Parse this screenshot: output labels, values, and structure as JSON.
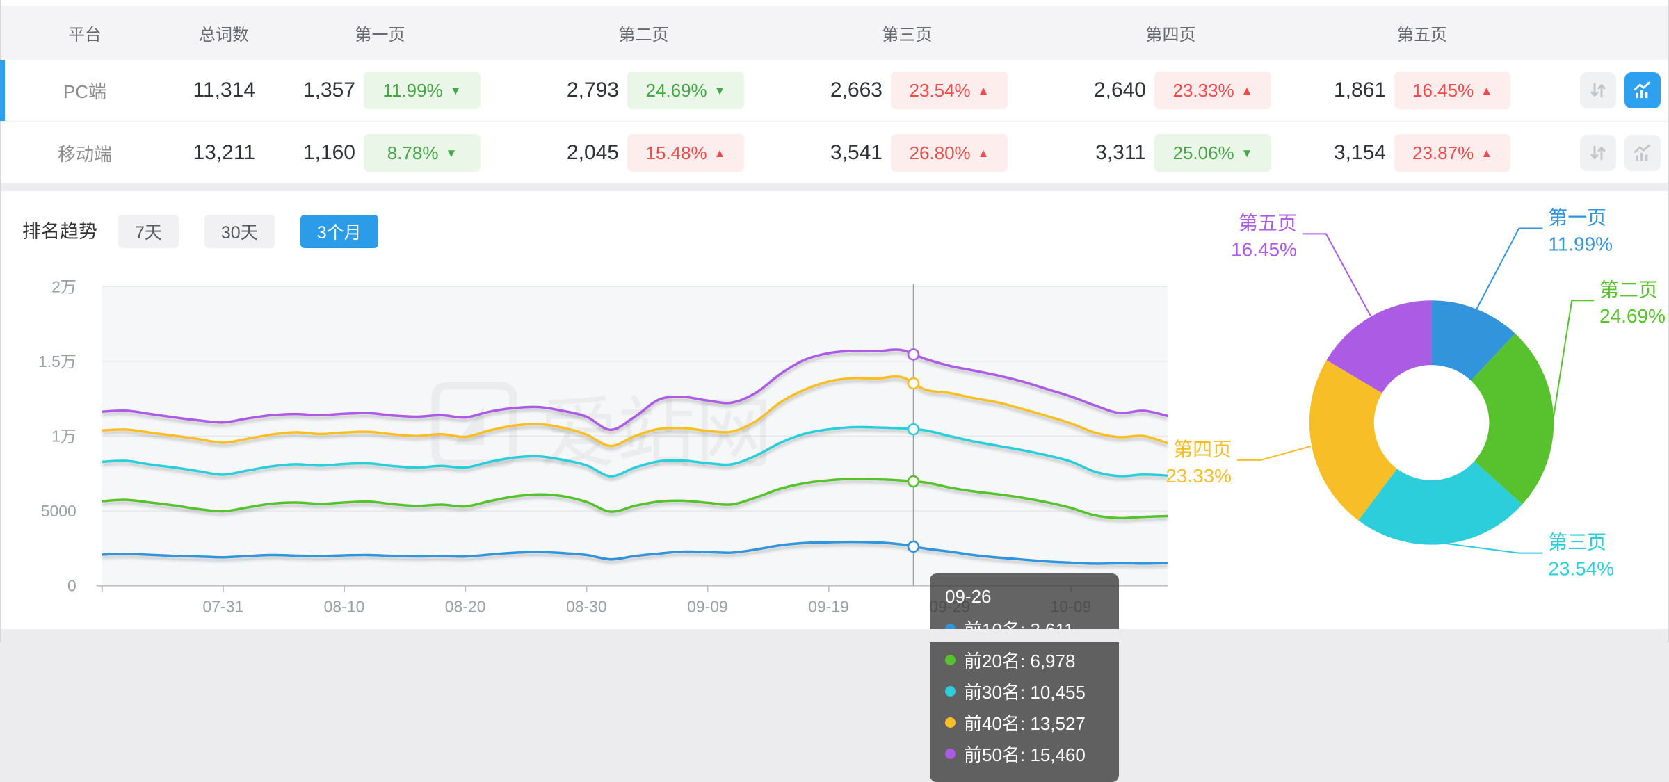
{
  "table": {
    "headers": [
      "平台",
      "总词数",
      "第一页",
      "第二页",
      "第三页",
      "第四页",
      "第五页"
    ],
    "rows": [
      {
        "platform": "PC端",
        "total": "11,314",
        "active": true,
        "pages": [
          {
            "count": "1,357",
            "pct": "11.99%",
            "dir": "down",
            "color": "green"
          },
          {
            "count": "2,793",
            "pct": "24.69%",
            "dir": "down",
            "color": "green"
          },
          {
            "count": "2,663",
            "pct": "23.54%",
            "dir": "up",
            "color": "red"
          },
          {
            "count": "2,640",
            "pct": "23.33%",
            "dir": "up",
            "color": "red"
          },
          {
            "count": "1,861",
            "pct": "16.45%",
            "dir": "up",
            "color": "red"
          }
        ]
      },
      {
        "platform": "移动端",
        "total": "13,211",
        "active": false,
        "pages": [
          {
            "count": "1,160",
            "pct": "8.78%",
            "dir": "down",
            "color": "green"
          },
          {
            "count": "2,045",
            "pct": "15.48%",
            "dir": "up",
            "color": "red"
          },
          {
            "count": "3,541",
            "pct": "26.80%",
            "dir": "up",
            "color": "red"
          },
          {
            "count": "3,311",
            "pct": "25.06%",
            "dir": "down",
            "color": "green"
          },
          {
            "count": "3,154",
            "pct": "23.87%",
            "dir": "up",
            "color": "red"
          }
        ]
      }
    ]
  },
  "trend": {
    "title": "排名趋势",
    "ranges": [
      {
        "label": "7天",
        "active": false
      },
      {
        "label": "30天",
        "active": false
      },
      {
        "label": "3个月",
        "active": true
      }
    ]
  },
  "watermark": {
    "text": "爱站网"
  },
  "colors": {
    "accent_blue": "#2B9FF0",
    "badge_green": "#46A546",
    "badge_red": "#F24A4A",
    "series": [
      "#3295DB",
      "#57C22D",
      "#2BCEDA",
      "#F7BE27",
      "#AC5CE4"
    ]
  },
  "chart_data": [
    {
      "type": "line",
      "title": "排名趋势（3个月）",
      "x": [
        "07-21",
        "07-23",
        "07-25",
        "07-27",
        "07-29",
        "07-31",
        "08-02",
        "08-04",
        "08-06",
        "08-08",
        "08-10",
        "08-12",
        "08-14",
        "08-16",
        "08-18",
        "08-20",
        "08-22",
        "08-24",
        "08-26",
        "08-28",
        "08-30",
        "09-01",
        "09-03",
        "09-05",
        "09-07",
        "09-09",
        "09-11",
        "09-13",
        "09-15",
        "09-17",
        "09-19",
        "09-21",
        "09-23",
        "09-25",
        "09-27",
        "09-29",
        "10-01",
        "10-03",
        "10-05",
        "10-07",
        "10-09",
        "10-11",
        "10-13",
        "10-15",
        "10-17"
      ],
      "x_tick_labels": [
        "07-31",
        "08-10",
        "08-20",
        "08-30",
        "09-09",
        "09-19",
        "09-29",
        "10-09"
      ],
      "ylim": [
        0,
        20000
      ],
      "y_tick_labels": [
        "0",
        "5000",
        "1万",
        "1.5万",
        "2万"
      ],
      "grid": true,
      "legend_position": "none",
      "series": [
        {
          "name": "前10名",
          "color": "#3295DB",
          "values": [
            2080,
            2130,
            2060,
            1990,
            1950,
            1900,
            1980,
            2050,
            2010,
            1970,
            2030,
            2050,
            1990,
            1960,
            1980,
            1950,
            2080,
            2200,
            2250,
            2180,
            2050,
            1760,
            1980,
            2150,
            2280,
            2250,
            2210,
            2420,
            2700,
            2850,
            2900,
            2930,
            2890,
            2760,
            2480,
            2280,
            2040,
            1880,
            1750,
            1620,
            1540,
            1470,
            1500,
            1480,
            1510
          ]
        },
        {
          "name": "前20名",
          "color": "#57C22D",
          "values": [
            5650,
            5740,
            5560,
            5360,
            5120,
            4980,
            5230,
            5480,
            5560,
            5470,
            5560,
            5620,
            5450,
            5330,
            5420,
            5300,
            5650,
            5960,
            6100,
            5990,
            5600,
            4950,
            5340,
            5630,
            5680,
            5540,
            5430,
            5900,
            6480,
            6850,
            7050,
            7150,
            7120,
            7040,
            6900,
            6560,
            6300,
            6110,
            5880,
            5580,
            5200,
            4700,
            4520,
            4600,
            4650
          ]
        },
        {
          "name": "前30名",
          "color": "#2BCEDA",
          "values": [
            8280,
            8350,
            8100,
            7900,
            7650,
            7420,
            7700,
            7980,
            8120,
            8030,
            8140,
            8180,
            8000,
            7900,
            8010,
            7900,
            8280,
            8560,
            8650,
            8420,
            8050,
            7320,
            7900,
            8320,
            8360,
            8190,
            8120,
            8700,
            9550,
            10150,
            10450,
            10600,
            10580,
            10520,
            10380,
            10000,
            9640,
            9350,
            9060,
            8720,
            8300,
            7620,
            7330,
            7430,
            7360
          ]
        },
        {
          "name": "前40名",
          "color": "#F7BE27",
          "values": [
            10380,
            10440,
            10230,
            10020,
            9800,
            9560,
            9820,
            10100,
            10260,
            10140,
            10240,
            10290,
            10120,
            10010,
            10130,
            9950,
            10380,
            10700,
            10800,
            10570,
            10100,
            9340,
            10000,
            10480,
            10540,
            10350,
            10300,
            11000,
            12250,
            13100,
            13650,
            13880,
            13850,
            13950,
            13100,
            12880,
            12540,
            12250,
            11820,
            11350,
            10850,
            10230,
            9930,
            10010,
            9520
          ]
        },
        {
          "name": "前50名",
          "color": "#AC5CE4",
          "values": [
            11640,
            11700,
            11480,
            11250,
            11050,
            10920,
            11180,
            11400,
            11480,
            11400,
            11500,
            11540,
            11380,
            11300,
            11400,
            11250,
            11640,
            11880,
            11950,
            11700,
            11300,
            10420,
            11300,
            12450,
            12620,
            12380,
            12240,
            12900,
            14150,
            15100,
            15550,
            15700,
            15680,
            15760,
            15160,
            14700,
            14380,
            14050,
            13650,
            13150,
            12650,
            12050,
            11550,
            11700,
            11350
          ]
        }
      ],
      "tooltip": {
        "date": "09-26",
        "items": [
          {
            "name": "前10名",
            "value": 2611,
            "display": "2,611",
            "color": "#3295DB"
          },
          {
            "name": "前20名",
            "value": 6978,
            "display": "6,978",
            "color": "#57C22D"
          },
          {
            "name": "前30名",
            "value": 10455,
            "display": "10,455",
            "color": "#2BCEDA"
          },
          {
            "name": "前40名",
            "value": 13527,
            "display": "13,527",
            "color": "#F7BE27"
          },
          {
            "name": "前50名",
            "value": 15460,
            "display": "15,460",
            "color": "#AC5CE4"
          }
        ]
      }
    },
    {
      "type": "pie",
      "inner_radius_ratio": 0.47,
      "slices": [
        {
          "label": "第一页",
          "pct_label": "11.99%",
          "value": 11.99,
          "color": "#3295DB"
        },
        {
          "label": "第二页",
          "pct_label": "24.69%",
          "value": 24.69,
          "color": "#57C22D"
        },
        {
          "label": "第三页",
          "pct_label": "23.54%",
          "value": 23.54,
          "color": "#2BCEDA"
        },
        {
          "label": "第四页",
          "pct_label": "23.33%",
          "value": 23.33,
          "color": "#F7BE27"
        },
        {
          "label": "第五页",
          "pct_label": "16.45%",
          "value": 16.45,
          "color": "#AC5CE4"
        }
      ]
    }
  ]
}
